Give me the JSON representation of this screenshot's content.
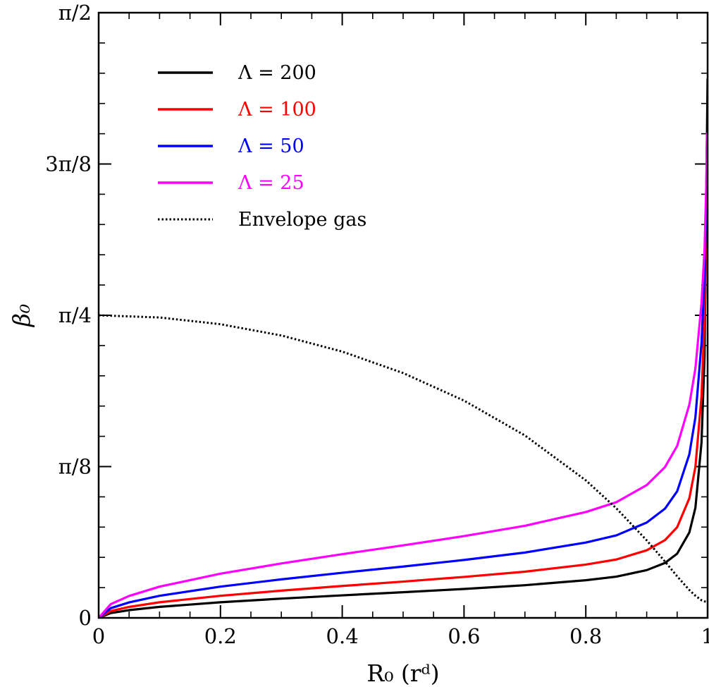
{
  "chart_data": {
    "type": "line",
    "title": "",
    "xlabel": "R₀ (rᵈ)",
    "ylabel": "β₀",
    "xlim": [
      0,
      1
    ],
    "ylim": [
      0,
      1.5708
    ],
    "x_ticks": [
      {
        "value": 0,
        "label": "0"
      },
      {
        "value": 0.2,
        "label": "0.2"
      },
      {
        "value": 0.4,
        "label": "0.4"
      },
      {
        "value": 0.6,
        "label": "0.6"
      },
      {
        "value": 0.8,
        "label": "0.8"
      },
      {
        "value": 1,
        "label": "1"
      }
    ],
    "y_ticks": [
      {
        "value": 0,
        "label": "0"
      },
      {
        "value": 0.3927,
        "label": "π/8"
      },
      {
        "value": 0.7854,
        "label": "π/4"
      },
      {
        "value": 1.1781,
        "label": "3π/8"
      },
      {
        "value": 1.5708,
        "label": "π/2"
      }
    ],
    "grid": false,
    "legend_position": "top-left",
    "series": [
      {
        "name": "Λ = 200",
        "color": "#000000",
        "dash": "solid",
        "x": [
          0,
          0.02,
          0.05,
          0.1,
          0.2,
          0.3,
          0.4,
          0.5,
          0.6,
          0.7,
          0.8,
          0.85,
          0.9,
          0.93,
          0.95,
          0.97,
          0.98,
          0.99,
          0.995,
          1.0
        ],
        "y": [
          0,
          0.0126,
          0.0201,
          0.0286,
          0.0405,
          0.05,
          0.0585,
          0.0666,
          0.0751,
          0.0848,
          0.0977,
          0.107,
          0.1239,
          0.1426,
          0.1666,
          0.2216,
          0.2859,
          0.4547,
          0.6799,
          1.4
        ]
      },
      {
        "name": "Λ = 100",
        "color": "#ff0000",
        "dash": "solid",
        "x": [
          0,
          0.02,
          0.05,
          0.1,
          0.2,
          0.3,
          0.4,
          0.5,
          0.6,
          0.7,
          0.8,
          0.85,
          0.9,
          0.93,
          0.95,
          0.97,
          0.98,
          0.99,
          0.995,
          0.997,
          0.999
        ],
        "y": [
          0,
          0.0178,
          0.0284,
          0.0405,
          0.0573,
          0.0707,
          0.0828,
          0.0942,
          0.1063,
          0.1199,
          0.1383,
          0.1515,
          0.1754,
          0.2018,
          0.2353,
          0.3103,
          0.3917,
          0.5751,
          0.7767,
          0.9195,
          1.2111
        ]
      },
      {
        "name": "Λ = 50",
        "color": "#0000ff",
        "dash": "solid",
        "x": [
          0,
          0.02,
          0.05,
          0.1,
          0.2,
          0.3,
          0.4,
          0.5,
          0.6,
          0.7,
          0.8,
          0.85,
          0.9,
          0.93,
          0.95,
          0.97,
          0.98,
          0.99,
          0.995,
          0.998,
          0.999
        ],
        "y": [
          0,
          0.0253,
          0.0402,
          0.0573,
          0.0811,
          0.1,
          0.1171,
          0.1332,
          0.1503,
          0.1696,
          0.1955,
          0.2141,
          0.2474,
          0.2835,
          0.3285,
          0.4243,
          0.5207,
          0.7131,
          0.8848,
          1.097,
          1.244
        ]
      },
      {
        "name": "Λ = 25",
        "color": "#ff00ff",
        "dash": "solid",
        "x": [
          0,
          0.02,
          0.05,
          0.1,
          0.2,
          0.3,
          0.4,
          0.5,
          0.6,
          0.7,
          0.8,
          0.85,
          0.9,
          0.93,
          0.95,
          0.97,
          0.98,
          0.99,
          0.995,
          0.998,
          0.999
        ],
        "y": [
          0,
          0.0358,
          0.0569,
          0.0811,
          0.1147,
          0.1413,
          0.1654,
          0.1882,
          0.2122,
          0.2391,
          0.2747,
          0.3001,
          0.3447,
          0.3914,
          0.4462,
          0.5532,
          0.6476,
          0.8162,
          0.9558,
          1.1309,
          1.2592
        ]
      },
      {
        "name": "Envelope gas",
        "color": "#000000",
        "dash": "dotted",
        "x": [
          0,
          0.1,
          0.2,
          0.3,
          0.4,
          0.5,
          0.6,
          0.7,
          0.8,
          0.85,
          0.9,
          0.93,
          0.95,
          0.97,
          0.98,
          0.99,
          1.0
        ],
        "y": [
          0.7854,
          0.7797,
          0.7623,
          0.733,
          0.6912,
          0.6355,
          0.564,
          0.4735,
          0.357,
          0.2846,
          0.2012,
          0.1463,
          0.1079,
          0.0724,
          0.0574,
          0.0458,
          0.04
        ]
      }
    ]
  }
}
